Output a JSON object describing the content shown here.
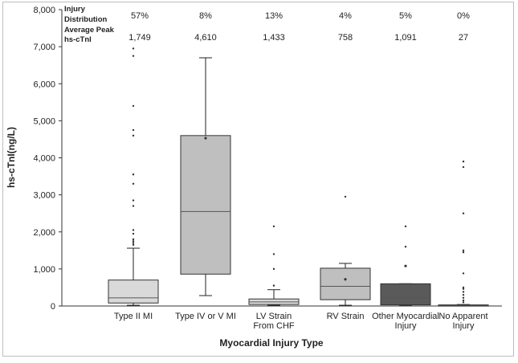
{
  "chart_data": {
    "type": "box",
    "xlabel": "Myocardial Injury Type",
    "ylabel": "hs-cTnI(ng/L)",
    "ylim": [
      0,
      8000
    ],
    "yticks": [
      "0",
      "1,000",
      "2,000",
      "3,000",
      "4,000",
      "5,000",
      "6,000",
      "7,000",
      "8,000"
    ],
    "ytick_values": [
      0,
      1000,
      2000,
      3000,
      4000,
      5000,
      6000,
      7000,
      8000
    ],
    "stat_rows": [
      {
        "label_lines": [
          "Injury",
          "Distribution"
        ],
        "values": [
          "57%",
          "8%",
          "13%",
          "4%",
          "5%",
          "0%"
        ]
      },
      {
        "label_lines": [
          "Average Peak",
          "hs-cTnI"
        ],
        "values": [
          "1,749",
          "4,610",
          "1,433",
          "758",
          "1,091",
          "27"
        ]
      }
    ],
    "categories": [
      {
        "label_lines": [
          "Type II MI"
        ],
        "color": "#d9d9d9",
        "whisker_low": 20,
        "q1": 80,
        "median": 220,
        "q3": 700,
        "whisker_high": 1560,
        "mean": null,
        "outliers": [
          1650,
          1700,
          1750,
          1800,
          1950,
          2050,
          2700,
          2850,
          3300,
          3550,
          4600,
          4750,
          5400,
          6750,
          6950
        ]
      },
      {
        "label_lines": [
          "Type IV or V MI"
        ],
        "color": "#bfbfbf",
        "whisker_low": 280,
        "q1": 860,
        "median": 2550,
        "q3": 4600,
        "whisker_high": 6700,
        "mean": 4530,
        "outliers": []
      },
      {
        "label_lines": [
          "LV Strain",
          "From CHF"
        ],
        "color": "#d9d9d9",
        "whisker_low": 20,
        "q1": 40,
        "median": 110,
        "q3": 190,
        "whisker_high": 440,
        "mean": null,
        "outliers": [
          550,
          1000,
          1400,
          2150
        ]
      },
      {
        "label_lines": [
          "RV Strain"
        ],
        "color": "#bfbfbf",
        "whisker_low": 20,
        "q1": 170,
        "median": 530,
        "q3": 1020,
        "whisker_high": 1150,
        "mean": 720,
        "outliers": [
          2950
        ]
      },
      {
        "label_lines": [
          "Other Myocardial",
          "Injury"
        ],
        "color": "#5a5a5a",
        "whisker_low": 10,
        "q1": 30,
        "median": 220,
        "q3": 600,
        "whisker_high": 600,
        "mean": 1080,
        "outliers": [
          1600,
          2150
        ]
      },
      {
        "label_lines": [
          "No Apparent",
          "Injury"
        ],
        "color": "#7f7f7f",
        "whisker_low": 0,
        "q1": 5,
        "median": 15,
        "q3": 30,
        "whisker_high": 40,
        "mean": null,
        "outliers": [
          100,
          150,
          220,
          300,
          380,
          460,
          500,
          880,
          1450,
          1500,
          2500,
          3750,
          3900
        ]
      }
    ]
  }
}
